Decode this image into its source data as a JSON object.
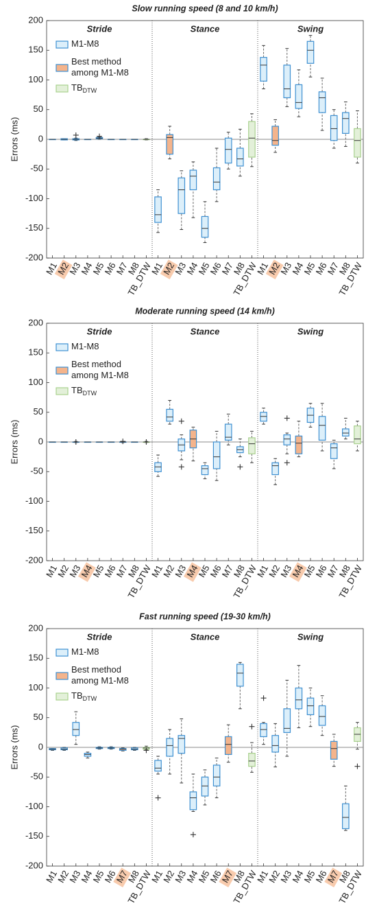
{
  "chart_data": [
    {
      "type": "box",
      "title": "Slow running speed (8 and 10 km/h)",
      "ylabel": "Errors (ms)",
      "ylim": [
        -200,
        200
      ],
      "yticks": [
        -200,
        -150,
        -100,
        -50,
        0,
        50,
        100,
        150,
        200
      ],
      "groups": [
        "Stride",
        "Stance",
        "Swing"
      ],
      "categories": [
        "M1",
        "M2",
        "M3",
        "M4",
        "M5",
        "M6",
        "M7",
        "M8",
        "TB_DTW",
        "M1",
        "M2",
        "M3",
        "M4",
        "M5",
        "M6",
        "M7",
        "M8",
        "TB_DTW",
        "M1",
        "M2",
        "M3",
        "M4",
        "M5",
        "M6",
        "M7",
        "M8",
        "TB_DTW"
      ],
      "legend": [
        {
          "name": "M1-M8",
          "fill": "#dceffa",
          "stroke": "#3d8fd1"
        },
        {
          "name": [
            "Best method",
            "among M1-M8"
          ],
          "fill": "#f4b48c",
          "stroke": "#3d8fd1"
        },
        {
          "name": "TB",
          "sub": "DTW",
          "fill": "#e3f0d9",
          "stroke": "#a9d18e"
        }
      ],
      "best": [
        1,
        10,
        19
      ],
      "reference": [
        8,
        17,
        26
      ],
      "boxes": [
        [
          0,
          0,
          0,
          0,
          0
        ],
        [
          -1,
          -1,
          0,
          1,
          1
        ],
        [
          -2,
          -1,
          0,
          1,
          2
        ],
        [
          0,
          0,
          0,
          0,
          0
        ],
        [
          0,
          1,
          2,
          3,
          4
        ],
        [
          0,
          0,
          0,
          0,
          0
        ],
        [
          0,
          0,
          0,
          0,
          0
        ],
        [
          0,
          0,
          0,
          0,
          0
        ],
        [
          -1,
          0,
          0,
          0,
          1
        ],
        [
          -157,
          -140,
          -127,
          -97,
          -85
        ],
        [
          -33,
          -25,
          3,
          8,
          22
        ],
        [
          -152,
          -125,
          -85,
          -65,
          -53
        ],
        [
          -132,
          -85,
          -62,
          -52,
          -38
        ],
        [
          -174,
          -165,
          -150,
          -130,
          -105
        ],
        [
          -105,
          -85,
          -72,
          -48,
          -15
        ],
        [
          -50,
          -40,
          -17,
          2,
          12
        ],
        [
          -62,
          -45,
          -33,
          -15,
          17
        ],
        [
          -46,
          -30,
          2,
          30,
          43
        ],
        [
          85,
          98,
          125,
          138,
          158
        ],
        [
          -22,
          -10,
          -2,
          22,
          33
        ],
        [
          55,
          70,
          85,
          125,
          153
        ],
        [
          38,
          52,
          62,
          92,
          117
        ],
        [
          105,
          128,
          150,
          165,
          175
        ],
        [
          15,
          45,
          70,
          80,
          103
        ],
        [
          -15,
          -2,
          18,
          40,
          50
        ],
        [
          -12,
          10,
          35,
          45,
          63
        ],
        [
          -40,
          -30,
          -2,
          18,
          48
        ]
      ],
      "fliers": [
        [],
        [],
        [
          7
        ],
        [],
        [
          5
        ],
        [],
        [],
        [],
        [],
        [],
        [],
        [],
        [],
        [],
        [],
        [],
        [],
        [],
        [],
        [],
        [],
        [],
        [],
        [],
        [],
        [],
        []
      ]
    },
    {
      "type": "box",
      "title": "Moderate running speed (14 km/h)",
      "ylabel": "Errors (ms)",
      "ylim": [
        -200,
        200
      ],
      "yticks": [
        -200,
        -150,
        -100,
        -50,
        0,
        50,
        100,
        150,
        200
      ],
      "groups": [
        "Stride",
        "Stance",
        "Swing"
      ],
      "categories": [
        "M1",
        "M2",
        "M3",
        "M4",
        "M5",
        "M6",
        "M7",
        "M8",
        "TB_DTW",
        "M1",
        "M2",
        "M3",
        "M4",
        "M5",
        "M6",
        "M7",
        "M8",
        "TB_DTW",
        "M1",
        "M2",
        "M3",
        "M4",
        "M5",
        "M6",
        "M7",
        "M8",
        "TB_DTW"
      ],
      "legend": [
        {
          "name": "M1-M8",
          "fill": "#dceffa",
          "stroke": "#3d8fd1"
        },
        {
          "name": [
            "Best method",
            "among M1-M8"
          ],
          "fill": "#f4b48c",
          "stroke": "#3d8fd1"
        },
        {
          "name": "TB",
          "sub": "DTW",
          "fill": "#e3f0d9",
          "stroke": "#a9d18e"
        }
      ],
      "best": [
        3,
        12,
        21
      ],
      "reference": [
        8,
        17,
        26
      ],
      "boxes": [
        [
          0,
          0,
          0,
          0,
          0
        ],
        [
          0,
          0,
          0,
          0,
          0
        ],
        [
          -1,
          0,
          0,
          0,
          1
        ],
        [
          0,
          0,
          0,
          0,
          0
        ],
        [
          0,
          0,
          0,
          0,
          0
        ],
        [
          0,
          0,
          0,
          0,
          0
        ],
        [
          -1,
          0,
          0,
          0,
          1
        ],
        [
          0,
          0,
          0,
          0,
          0
        ],
        [
          -1,
          0,
          0,
          0,
          1
        ],
        [
          -58,
          -50,
          -42,
          -35,
          -22
        ],
        [
          30,
          35,
          42,
          55,
          70
        ],
        [
          -30,
          -15,
          -5,
          5,
          12
        ],
        [
          -32,
          -10,
          5,
          20,
          25
        ],
        [
          -62,
          -55,
          -45,
          -40,
          -35
        ],
        [
          -65,
          -45,
          -25,
          0,
          18
        ],
        [
          -5,
          3,
          8,
          30,
          47
        ],
        [
          -25,
          -18,
          -13,
          -8,
          5
        ],
        [
          -35,
          -20,
          -3,
          7,
          18
        ],
        [
          30,
          35,
          43,
          50,
          57
        ],
        [
          -72,
          -55,
          -40,
          -35,
          -28
        ],
        [
          -20,
          -5,
          5,
          12,
          15
        ],
        [
          -25,
          -20,
          -2,
          10,
          35
        ],
        [
          25,
          33,
          45,
          57,
          65
        ],
        [
          -15,
          3,
          28,
          43,
          65
        ],
        [
          -45,
          -28,
          -10,
          -3,
          3
        ],
        [
          5,
          10,
          15,
          22,
          40
        ],
        [
          -15,
          -3,
          5,
          27,
          35
        ]
      ],
      "fliers": [
        [],
        [],
        [
          0
        ],
        [],
        [],
        [],
        [
          1
        ],
        [],
        [
          0
        ],
        [],
        [],
        [
          35,
          -42
        ],
        [],
        [],
        [],
        [],
        [
          -42
        ],
        [],
        [],
        [],
        [
          40,
          -35
        ],
        [],
        [],
        [],
        [],
        [],
        []
      ]
    },
    {
      "type": "box",
      "title": "Fast running speed (19-30 km/h)",
      "ylabel": "Errors (ms)",
      "ylim": [
        -200,
        200
      ],
      "yticks": [
        -200,
        -150,
        -100,
        -50,
        0,
        50,
        100,
        150,
        200
      ],
      "groups": [
        "Stride",
        "Stance",
        "Swing"
      ],
      "categories": [
        "M1",
        "M2",
        "M3",
        "M4",
        "M5",
        "M6",
        "M7",
        "M8",
        "TB_DTW",
        "M1",
        "M2",
        "M3",
        "M4",
        "M5",
        "M6",
        "M7",
        "M8",
        "TB_DTW",
        "M1",
        "M2",
        "M3",
        "M4",
        "M5",
        "M6",
        "M7",
        "M8",
        "TB_DTW"
      ],
      "legend": [
        {
          "name": "M1-M8",
          "fill": "#dceffa",
          "stroke": "#3d8fd1"
        },
        {
          "name": [
            "Best method",
            "among M1-M8"
          ],
          "fill": "#f4b48c",
          "stroke": "#3d8fd1"
        },
        {
          "name": "TB",
          "sub": "DTW",
          "fill": "#e3f0d9",
          "stroke": "#a9d18e"
        }
      ],
      "best": [
        6,
        15,
        24
      ],
      "reference": [
        8,
        17,
        26
      ],
      "boxes": [
        [
          -5,
          -4,
          -3,
          -2,
          -2
        ],
        [
          -5,
          -4,
          -3,
          -1,
          0
        ],
        [
          5,
          20,
          30,
          42,
          60
        ],
        [
          -18,
          -15,
          -12,
          -10,
          -8
        ],
        [
          -3,
          -2,
          -1,
          0,
          1
        ],
        [
          -3,
          -2,
          -1,
          0,
          1
        ],
        [
          -6,
          -5,
          -3,
          -2,
          -1
        ],
        [
          -5,
          -4,
          -3,
          -1,
          0
        ],
        [
          -4,
          -3,
          -1,
          0,
          2
        ],
        [
          -45,
          -40,
          -35,
          -22,
          -15
        ],
        [
          -45,
          -15,
          3,
          15,
          30
        ],
        [
          -60,
          -10,
          15,
          20,
          48
        ],
        [
          -108,
          -105,
          -85,
          -75,
          -45
        ],
        [
          -97,
          -82,
          -65,
          -50,
          -38
        ],
        [
          -85,
          -65,
          -50,
          -30,
          -18
        ],
        [
          -25,
          -12,
          5,
          18,
          38
        ],
        [
          65,
          103,
          125,
          140,
          143
        ],
        [
          -42,
          -32,
          -23,
          -10,
          8
        ],
        [
          5,
          18,
          30,
          40,
          42
        ],
        [
          -33,
          -8,
          3,
          20,
          40
        ],
        [
          -15,
          25,
          32,
          65,
          113
        ],
        [
          33,
          65,
          80,
          100,
          138
        ],
        [
          35,
          55,
          70,
          83,
          100
        ],
        [
          20,
          37,
          52,
          70,
          87
        ],
        [
          -32,
          -20,
          -2,
          10,
          22
        ],
        [
          -140,
          -137,
          -118,
          -95,
          -65
        ],
        [
          -3,
          10,
          22,
          33,
          42
        ]
      ],
      "fliers": [
        [],
        [],
        [],
        [],
        [],
        [],
        [],
        [],
        [
          -5
        ],
        [
          -85
        ],
        [],
        [],
        [
          -147
        ],
        [],
        [],
        [],
        [],
        [
          35
        ],
        [
          83
        ],
        [],
        [],
        [],
        [],
        [],
        [],
        [],
        [
          -32
        ]
      ]
    }
  ]
}
